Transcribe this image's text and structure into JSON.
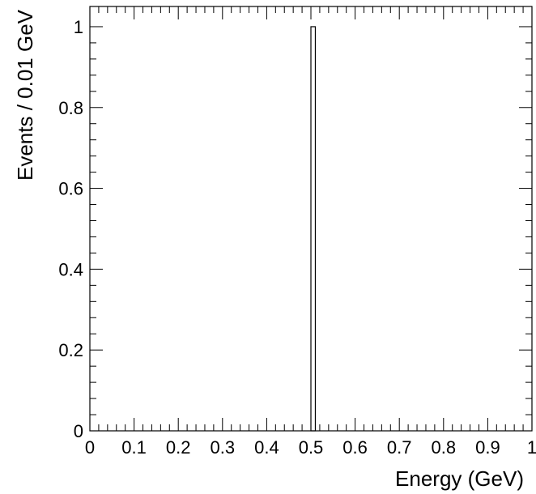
{
  "chart_data": {
    "type": "bar",
    "xlabel": "Energy (GeV)",
    "ylabel": "Events / 0.01 GeV",
    "xlim": [
      0,
      1
    ],
    "ylim": [
      0,
      1.05
    ],
    "bin_width": 0.01,
    "bins": [
      {
        "x_low": 0.5,
        "x_high": 0.51,
        "value": 1
      }
    ],
    "x_ticks": [
      "0",
      "0.1",
      "0.2",
      "0.3",
      "0.4",
      "0.5",
      "0.6",
      "0.7",
      "0.8",
      "0.9",
      "1"
    ],
    "y_ticks": [
      "0",
      "0.2",
      "0.4",
      "0.6",
      "0.8",
      "1"
    ],
    "grid": false,
    "legend": "none"
  }
}
